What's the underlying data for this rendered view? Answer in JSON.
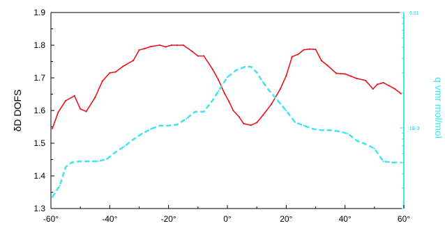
{
  "chart_data": {
    "type": "line",
    "xlabel": "",
    "ylabel": "δD DOFS",
    "y2label": "q vmr mol/mol",
    "xlim": [
      -60,
      60
    ],
    "ylim": [
      1.3,
      1.9
    ],
    "y2scale": "log",
    "y2lim": [
      0.0002,
      0.01
    ],
    "grid": false,
    "x_tick_labels": [
      "-60°",
      "-40°",
      "-20°",
      "0°",
      "20°",
      "40°",
      "60°"
    ],
    "x_tick_values": [
      -60,
      -40,
      -20,
      0,
      20,
      40,
      60
    ],
    "y_tick_labels": [
      "1.3",
      "1.4",
      "1.5",
      "1.6",
      "1.7",
      "1.8",
      "1.9"
    ],
    "y_tick_values": [
      1.3,
      1.4,
      1.5,
      1.6,
      1.7,
      1.8,
      1.9
    ],
    "y2_tick_labels": [
      "1E-3",
      "0.01"
    ],
    "y2_tick_values": [
      0.001,
      0.01
    ],
    "colors": {
      "dofs": "#e8141a",
      "q": "#3fe4ee",
      "y2axis": "#3fe4ee"
    },
    "series": [
      {
        "axis": "left",
        "color": "#e8141a",
        "style": "solid",
        "x": [
          -59.5,
          -57.5,
          -55,
          -52,
          -50,
          -48,
          -45,
          -42.5,
          -40,
          -38,
          -35.5,
          -32,
          -30,
          -28,
          -26,
          -23,
          -21,
          -19,
          -17,
          -15,
          -12,
          -10,
          -8,
          -5,
          -3,
          -1,
          0.5,
          2,
          4,
          5.5,
          8,
          10,
          12,
          15,
          18,
          20,
          22,
          24,
          26,
          28,
          30,
          32,
          34,
          37,
          40,
          42,
          44,
          47,
          49.5,
          51,
          53,
          55,
          57,
          59
        ],
        "values": [
          1.545,
          1.595,
          1.63,
          1.645,
          1.605,
          1.597,
          1.64,
          1.69,
          1.715,
          1.718,
          1.735,
          1.753,
          1.785,
          1.79,
          1.796,
          1.8,
          1.795,
          1.8,
          1.8,
          1.8,
          1.781,
          1.767,
          1.767,
          1.726,
          1.693,
          1.653,
          1.628,
          1.6,
          1.58,
          1.56,
          1.555,
          1.563,
          1.585,
          1.62,
          1.666,
          1.706,
          1.765,
          1.772,
          1.786,
          1.788,
          1.787,
          1.753,
          1.738,
          1.714,
          1.712,
          1.705,
          1.698,
          1.692,
          1.666,
          1.68,
          1.685,
          1.676,
          1.666,
          1.652
        ]
      },
      {
        "axis": "right",
        "color": "#3fe4ee",
        "style": "dashed",
        "x": [
          -59.5,
          -57,
          -55,
          -53,
          -50,
          -47,
          -44,
          -41,
          -38,
          -35,
          -32,
          -29,
          -26,
          -23,
          -20,
          -17,
          -14,
          -11,
          -8,
          -5,
          -3,
          0,
          3,
          6,
          8,
          10,
          12,
          14,
          16,
          18,
          20,
          23,
          26,
          29,
          32,
          35,
          38,
          41,
          44,
          47,
          50,
          53,
          56,
          59
        ],
        "values": [
          0.000251,
          0.000316,
          0.000457,
          0.000501,
          0.000513,
          0.000513,
          0.000513,
          0.000537,
          0.000617,
          0.000692,
          0.000794,
          0.000891,
          0.00098,
          0.001047,
          0.001047,
          0.00107,
          0.001202,
          0.00138,
          0.00138,
          0.001738,
          0.002089,
          0.002754,
          0.003162,
          0.003388,
          0.003388,
          0.00302,
          0.002512,
          0.002138,
          0.001862,
          0.001622,
          0.001413,
          0.001122,
          0.001047,
          0.00098,
          0.000955,
          0.000955,
          0.000933,
          0.000891,
          0.000776,
          0.000724,
          0.000661,
          0.000513,
          0.000501,
          0.000501
        ]
      }
    ]
  }
}
